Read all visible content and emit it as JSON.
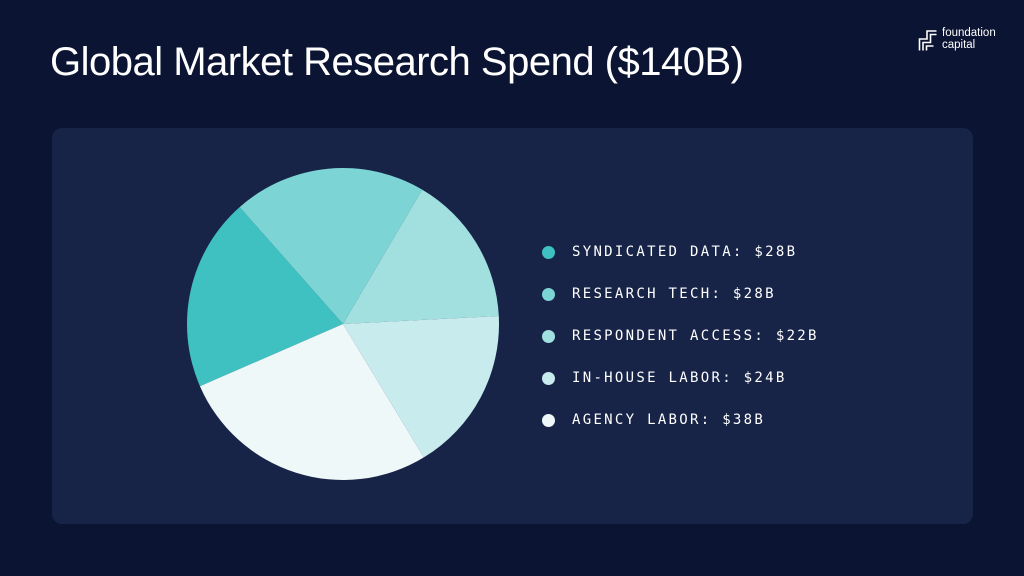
{
  "header": {
    "title": "Global Market Research Spend  ($140B)"
  },
  "brand": {
    "name": "foundation\ncapital"
  },
  "chart_data": {
    "type": "pie",
    "title": "Global Market Research Spend  ($140B)",
    "total": 140,
    "unit": "$B",
    "slices": [
      {
        "label": "SYNDICATED DATA: $28B",
        "category": "SYNDICATED DATA",
        "value": 28,
        "color": "#3fc1c2"
      },
      {
        "label": "RESEARCH TECH: $28B",
        "category": "RESEARCH TECH",
        "value": 28,
        "color": "#7cd5d4"
      },
      {
        "label": "RESPONDENT ACCESS: $22B",
        "category": "RESPONDENT ACCESS",
        "value": 22,
        "color": "#a2e0e0"
      },
      {
        "label": "IN-HOUSE LABOR: $24B",
        "category": "IN-HOUSE LABOR",
        "value": 24,
        "color": "#c8eced"
      },
      {
        "label": "AGENCY LABOR: $38B",
        "category": "AGENCY LABOR",
        "value": 38,
        "color": "#eef8f9"
      }
    ],
    "legend_position": "right"
  }
}
